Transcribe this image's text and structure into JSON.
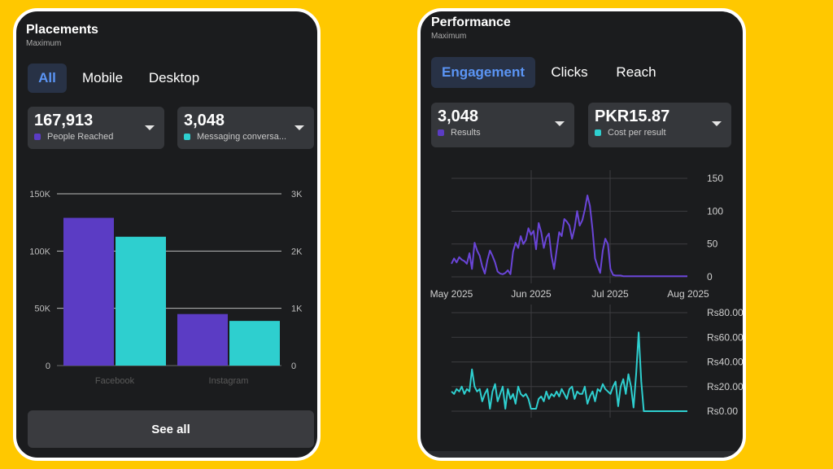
{
  "placements": {
    "title": "Placements",
    "subtitle": "Maximum",
    "tabs": [
      {
        "label": "All",
        "active": true
      },
      {
        "label": "Mobile",
        "active": false
      },
      {
        "label": "Desktop",
        "active": false
      }
    ],
    "cards": [
      {
        "value": "167,913",
        "label": "People Reached",
        "color": "#5b3cc4"
      },
      {
        "value": "3,048",
        "label": "Messaging conversa...",
        "color": "#2ecfcf"
      }
    ],
    "see_all_label": "See all"
  },
  "performance": {
    "title": "Performance",
    "subtitle": "Maximum",
    "tabs": [
      {
        "label": "Engagement",
        "active": true
      },
      {
        "label": "Clicks",
        "active": false
      },
      {
        "label": "Reach",
        "active": false
      }
    ],
    "cards": [
      {
        "value": "3,048",
        "label": "Results",
        "color": "#5b3cc4"
      },
      {
        "value": "PKR15.87",
        "label": "Cost per result",
        "color": "#2ecfcf"
      }
    ]
  },
  "chart_data": [
    {
      "type": "bar",
      "categories": [
        "Facebook",
        "Instagram"
      ],
      "series": [
        {
          "values": [
            129000,
            45000
          ],
          "color": "#5b3cc4",
          "axis": "left"
        },
        {
          "values": [
            2250,
            780
          ],
          "color": "#2ecfcf",
          "axis": "right"
        }
      ],
      "y_left": {
        "ticks": [
          "0",
          "50K",
          "100K",
          "150K"
        ],
        "ylim": [
          0,
          150000
        ]
      },
      "y_right": {
        "ticks": [
          "0",
          "1K",
          "2K",
          "3K"
        ],
        "ylim": [
          0,
          3000
        ]
      },
      "grid": true
    },
    {
      "type": "line",
      "x_labels": [
        "May 2025",
        "Jun 2025",
        "Jul 2025",
        "Aug 2025"
      ],
      "x_range": [
        "2025-05-01",
        "2025-08-01"
      ],
      "y_ticks": [
        "0",
        "50",
        "100",
        "150"
      ],
      "ylim": [
        0,
        150
      ],
      "series": [
        {
          "color": "#6a45d8",
          "values": [
            20,
            28,
            22,
            30,
            26,
            24,
            20,
            36,
            12,
            52,
            40,
            32,
            16,
            5,
            25,
            40,
            32,
            22,
            8,
            5,
            4,
            6,
            10,
            4,
            38,
            52,
            44,
            62,
            50,
            56,
            74,
            64,
            70,
            42,
            82,
            68,
            44,
            60,
            66,
            32,
            12,
            40,
            68,
            62,
            88,
            84,
            78,
            58,
            74,
            100,
            78,
            86,
            102,
            124,
            108,
            72,
            28,
            16,
            6,
            40,
            58,
            50,
            12,
            3,
            2,
            2,
            2,
            1,
            1,
            1,
            1,
            1,
            1,
            1,
            1,
            1,
            1,
            1,
            1,
            1,
            1,
            1,
            1,
            1,
            1,
            1,
            1,
            1,
            1,
            1,
            1,
            1,
            1
          ]
        }
      ]
    },
    {
      "type": "line",
      "x_range": [
        "2025-05-01",
        "2025-08-01"
      ],
      "y_ticks": [
        "Rs0.00",
        "Rs20.00",
        "Rs40.00",
        "Rs60.00",
        "Rs80.00"
      ],
      "ylim": [
        0,
        80
      ],
      "series": [
        {
          "color": "#2ecfcf",
          "values": [
            16,
            14,
            18,
            16,
            20,
            14,
            18,
            16,
            34,
            20,
            16,
            18,
            8,
            14,
            18,
            2,
            16,
            22,
            8,
            14,
            20,
            2,
            18,
            10,
            14,
            6,
            20,
            14,
            12,
            14,
            10,
            2,
            2,
            2,
            10,
            12,
            8,
            16,
            10,
            14,
            12,
            16,
            12,
            18,
            14,
            10,
            18,
            20,
            10,
            16,
            14,
            14,
            20,
            6,
            12,
            16,
            8,
            18,
            16,
            22,
            18,
            16,
            14,
            20,
            24,
            4,
            20,
            26,
            14,
            30,
            20,
            3,
            30,
            64,
            24,
            0,
            0,
            0,
            0,
            0,
            0,
            0,
            0,
            0,
            0,
            0,
            0,
            0,
            0,
            0,
            0,
            0,
            0
          ]
        }
      ]
    }
  ]
}
